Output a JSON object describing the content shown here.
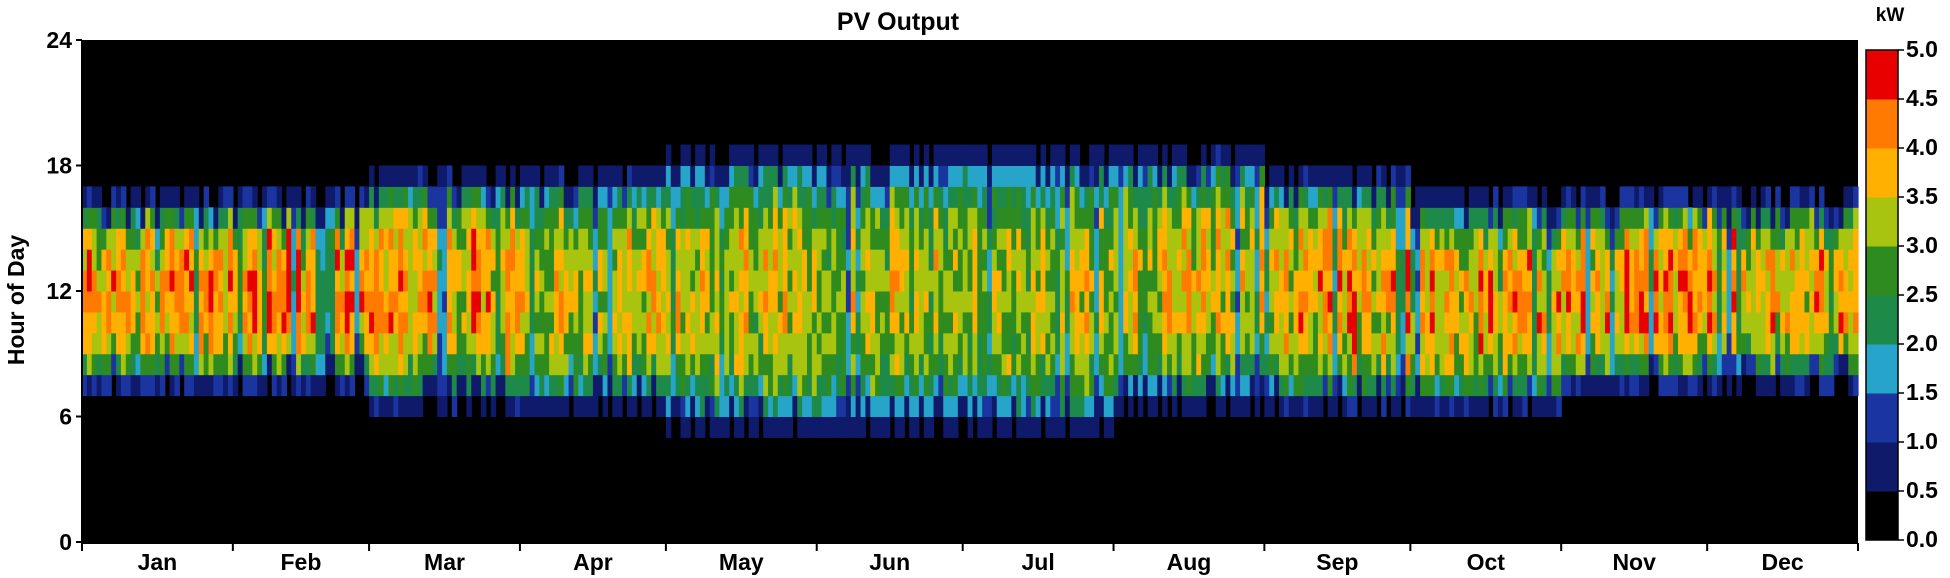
{
  "chart_data": {
    "type": "heatmap",
    "title": "PV Output",
    "xlabel": "",
    "ylabel": "Hour of Day",
    "x_tick_labels": [
      "Jan",
      "Feb",
      "Mar",
      "Apr",
      "May",
      "Jun",
      "Jul",
      "Aug",
      "Sep",
      "Oct",
      "Nov",
      "Dec"
    ],
    "y_ticks": [
      0,
      6,
      12,
      18,
      24
    ],
    "ylim": [
      0,
      24
    ],
    "xlim_days": [
      1,
      365
    ],
    "colorbar": {
      "unit": "kW",
      "ticks": [
        "0.0",
        "0.5",
        "1.0",
        "1.5",
        "2.0",
        "2.5",
        "3.0",
        "3.5",
        "4.0",
        "4.5",
        "5.0"
      ],
      "range": [
        0,
        5
      ],
      "step": 0.5,
      "colors": [
        "#000000",
        "#0f1a6b",
        "#1b35a0",
        "#27a4c9",
        "#1e8a4a",
        "#2e8b1f",
        "#a8c40f",
        "#ffb000",
        "#ff7a00",
        "#e80000"
      ]
    },
    "monthly_profile": [
      {
        "month": "Jan",
        "sunrise_hour": 7,
        "sunset_hour": 17,
        "peak_kw": 4.8
      },
      {
        "month": "Feb",
        "sunrise_hour": 7,
        "sunset_hour": 17,
        "peak_kw": 4.9
      },
      {
        "month": "Mar",
        "sunrise_hour": 6,
        "sunset_hour": 18,
        "peak_kw": 4.6
      },
      {
        "month": "Apr",
        "sunrise_hour": 6,
        "sunset_hour": 18,
        "peak_kw": 4.2
      },
      {
        "month": "May",
        "sunrise_hour": 5,
        "sunset_hour": 19,
        "peak_kw": 4.1
      },
      {
        "month": "Jun",
        "sunrise_hour": 5,
        "sunset_hour": 19,
        "peak_kw": 3.9
      },
      {
        "month": "Jul",
        "sunrise_hour": 5,
        "sunset_hour": 19,
        "peak_kw": 4.0
      },
      {
        "month": "Aug",
        "sunrise_hour": 6,
        "sunset_hour": 19,
        "peak_kw": 4.3
      },
      {
        "month": "Sep",
        "sunrise_hour": 6,
        "sunset_hour": 18,
        "peak_kw": 4.6
      },
      {
        "month": "Oct",
        "sunrise_hour": 6,
        "sunset_hour": 17,
        "peak_kw": 4.7
      },
      {
        "month": "Nov",
        "sunrise_hour": 7,
        "sunset_hour": 17,
        "peak_kw": 4.9
      },
      {
        "month": "Dec",
        "sunrise_hour": 7,
        "sunset_hour": 17,
        "peak_kw": 4.8
      }
    ]
  }
}
